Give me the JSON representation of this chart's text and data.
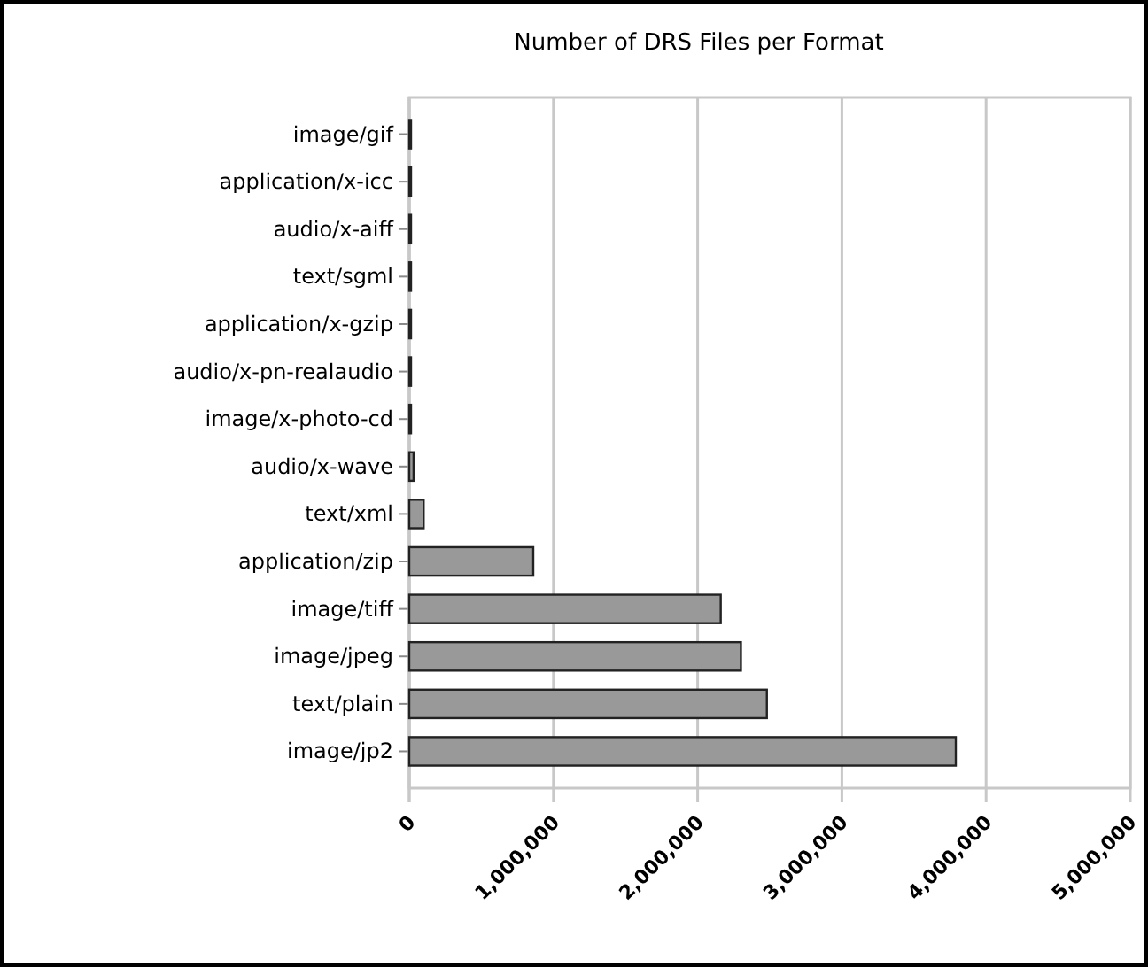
{
  "chart_data": {
    "type": "bar",
    "orientation": "horizontal",
    "title": "Number of DRS Files per Format",
    "categories": [
      "image/gif",
      "application/x-icc",
      "audio/x-aiff",
      "text/sgml",
      "application/x-gzip",
      "audio/x-pn-realaudio",
      "image/x-photo-cd",
      "audio/x-wave",
      "text/xml",
      "application/zip",
      "image/tiff",
      "image/jpeg",
      "text/plain",
      "image/jp2"
    ],
    "values": [
      10000,
      10000,
      10000,
      10000,
      10000,
      10000,
      10000,
      30000,
      100000,
      860000,
      2160000,
      2300000,
      2480000,
      3790000
    ],
    "color": "#999999",
    "xlim": [
      0,
      5000000
    ],
    "xticks": [
      {
        "value": 0,
        "label": "0"
      },
      {
        "value": 1000000,
        "label": "1,000,000"
      },
      {
        "value": 2000000,
        "label": "2,000,000"
      },
      {
        "value": 3000000,
        "label": "3,000,000"
      },
      {
        "value": 4000000,
        "label": "4,000,000"
      },
      {
        "value": 5000000,
        "label": "5,000,000"
      }
    ],
    "grid": "x"
  }
}
